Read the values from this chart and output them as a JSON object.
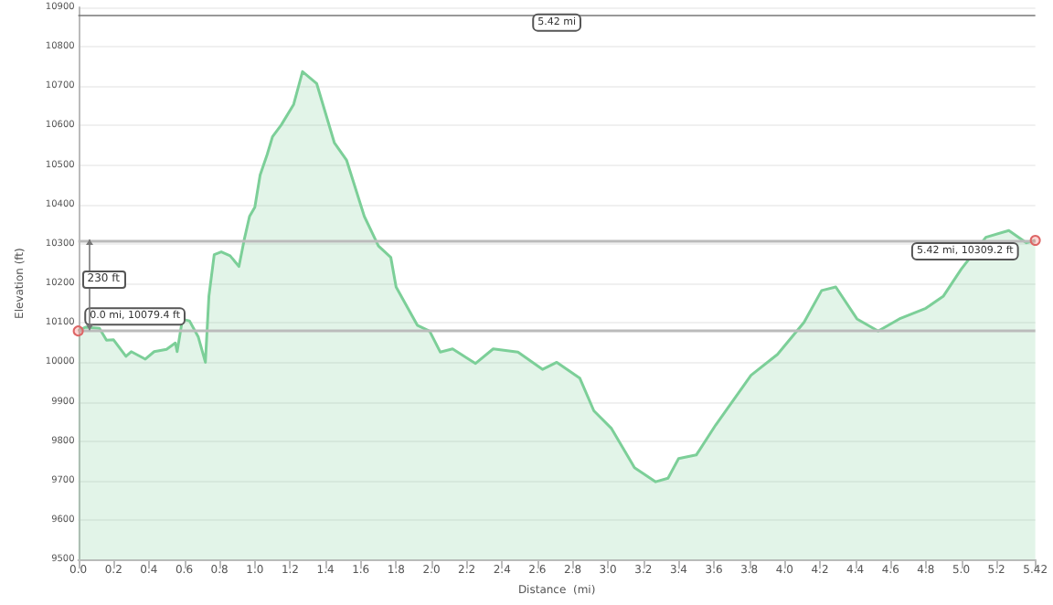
{
  "chart_data": {
    "type": "area",
    "xlabel": "Distance  (mi)",
    "ylabel": "Elevation (ft)",
    "x": [
      0,
      0.04,
      0.12,
      0.16,
      0.2,
      0.27,
      0.3,
      0.38,
      0.43,
      0.5,
      0.55,
      0.56,
      0.59,
      0.63,
      0.68,
      0.72,
      0.74,
      0.77,
      0.81,
      0.86,
      0.91,
      0.94,
      0.97,
      1.0,
      1.03,
      1.07,
      1.1,
      1.15,
      1.22,
      1.27,
      1.35,
      1.45,
      1.52,
      1.62,
      1.7,
      1.77,
      1.8,
      1.92,
      1.99,
      2.05,
      2.12,
      2.25,
      2.35,
      2.49,
      2.63,
      2.71,
      2.84,
      2.92,
      3.02,
      3.15,
      3.27,
      3.34,
      3.4,
      3.5,
      3.61,
      3.81,
      3.96,
      4.11,
      4.21,
      4.29,
      4.41,
      4.53,
      4.65,
      4.8,
      4.9,
      5.0,
      5.14,
      5.27,
      5.37,
      5.42
    ],
    "series": [
      {
        "color": "#7ccf98",
        "values": [
          10079.4,
          10089,
          10086,
          10056,
          10057,
          10015,
          10027,
          10008,
          10027,
          10033,
          10049,
          10027,
          10109,
          10105,
          10064,
          10000,
          10168,
          10273,
          10280,
          10270,
          10243,
          10311,
          10370,
          10393,
          10475,
          10527,
          10572,
          10602,
          10654,
          10737,
          10707,
          10557,
          10512,
          10370,
          10295,
          10266,
          10191,
          10094,
          10079,
          10026,
          10034,
          9997,
          10034,
          10026,
          9982,
          10000,
          9960,
          9877,
          9832,
          9733,
          9697,
          9706,
          9756,
          9765,
          9841,
          9967,
          10020,
          10101,
          10182,
          10191,
          10110,
          10079,
          10110,
          10137,
          10168,
          10236,
          10317,
          10334,
          10303,
          10309.2
        ]
      }
    ],
    "xlim": [
      0,
      5.42
    ],
    "xticks": [
      {
        "value": 0,
        "label": "0.0"
      },
      0.2,
      0.4,
      0.6,
      0.8,
      {
        "value": 1,
        "label": "1.0"
      },
      1.2,
      1.4,
      1.6,
      1.8,
      {
        "value": 2,
        "label": "2.0"
      },
      2.2,
      2.4,
      2.6,
      2.8,
      {
        "value": 3,
        "label": "3.0"
      },
      3.2,
      3.4,
      3.6,
      3.8,
      {
        "value": 4,
        "label": "4.0"
      },
      4.2,
      4.4,
      4.6,
      4.8,
      {
        "value": 5,
        "label": "5.0"
      },
      5.2,
      5.42
    ],
    "ylim": [
      9500,
      10900
    ],
    "yticks": [
      9500,
      9600,
      9700,
      9800,
      9900,
      10000,
      10100,
      10200,
      10300,
      10400,
      10500,
      10600,
      10700,
      10800,
      10900
    ],
    "grid": "y",
    "marker": "none",
    "ref_lines": [
      {
        "axis": "y",
        "value": 10079.4,
        "color": "#bbbbbb"
      },
      {
        "axis": "y",
        "value": 10309.2,
        "color": "#bbbbbb"
      },
      {
        "axis": "y",
        "value": 10880,
        "label": "5.42 mi",
        "color": "#777777"
      }
    ],
    "annotations": [
      "230 ft",
      {
        "text": "0.0 mi, 10079.4 ft",
        "x": 0,
        "y": 10079.4
      },
      {
        "text": "5.42 mi, 10309.2 ft",
        "x": 5.42,
        "y": 10309.2
      }
    ]
  }
}
